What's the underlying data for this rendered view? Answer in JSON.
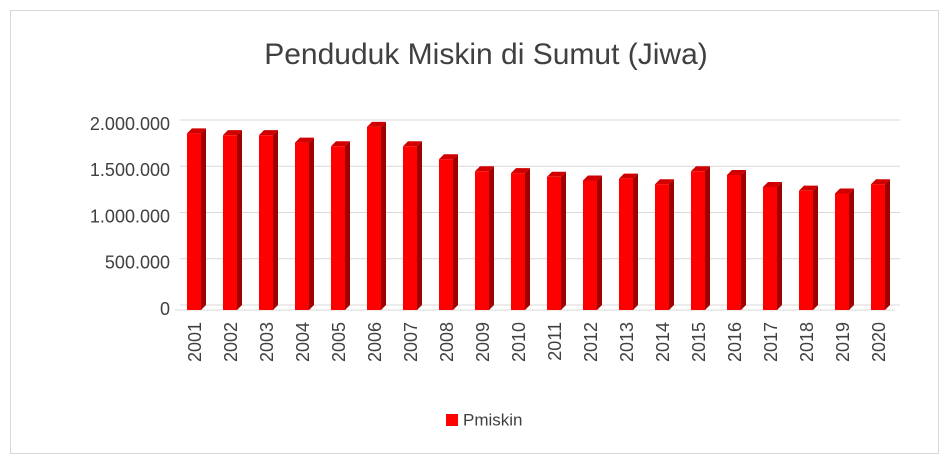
{
  "chart_data": {
    "type": "bar3d",
    "title": "Penduduk Miskin di Sumut (Jiwa)",
    "categories": [
      "2001",
      "2002",
      "2003",
      "2004",
      "2005",
      "2006",
      "2007",
      "2008",
      "2009",
      "2010",
      "2011",
      "2012",
      "2013",
      "2014",
      "2015",
      "2016",
      "2017",
      "2018",
      "2019",
      "2020"
    ],
    "series": [
      {
        "name": "Pmiskin",
        "color": "#ff0000",
        "values": [
          1910000,
          1890000,
          1890000,
          1810000,
          1770000,
          1980000,
          1770000,
          1630000,
          1500000,
          1480000,
          1440000,
          1400000,
          1420000,
          1360000,
          1500000,
          1460000,
          1330000,
          1290000,
          1260000,
          1360000
        ]
      }
    ],
    "ylim": [
      0,
      2000000
    ],
    "yticks": [
      0,
      {
        "value": 500000,
        "label": "500.000"
      },
      {
        "value": 1000000,
        "label": "1.000.000"
      },
      {
        "value": 1500000,
        "label": "1.500.000"
      },
      {
        "value": 2000000,
        "label": "2.000.000"
      }
    ],
    "grid": true,
    "legend": "bottom"
  }
}
